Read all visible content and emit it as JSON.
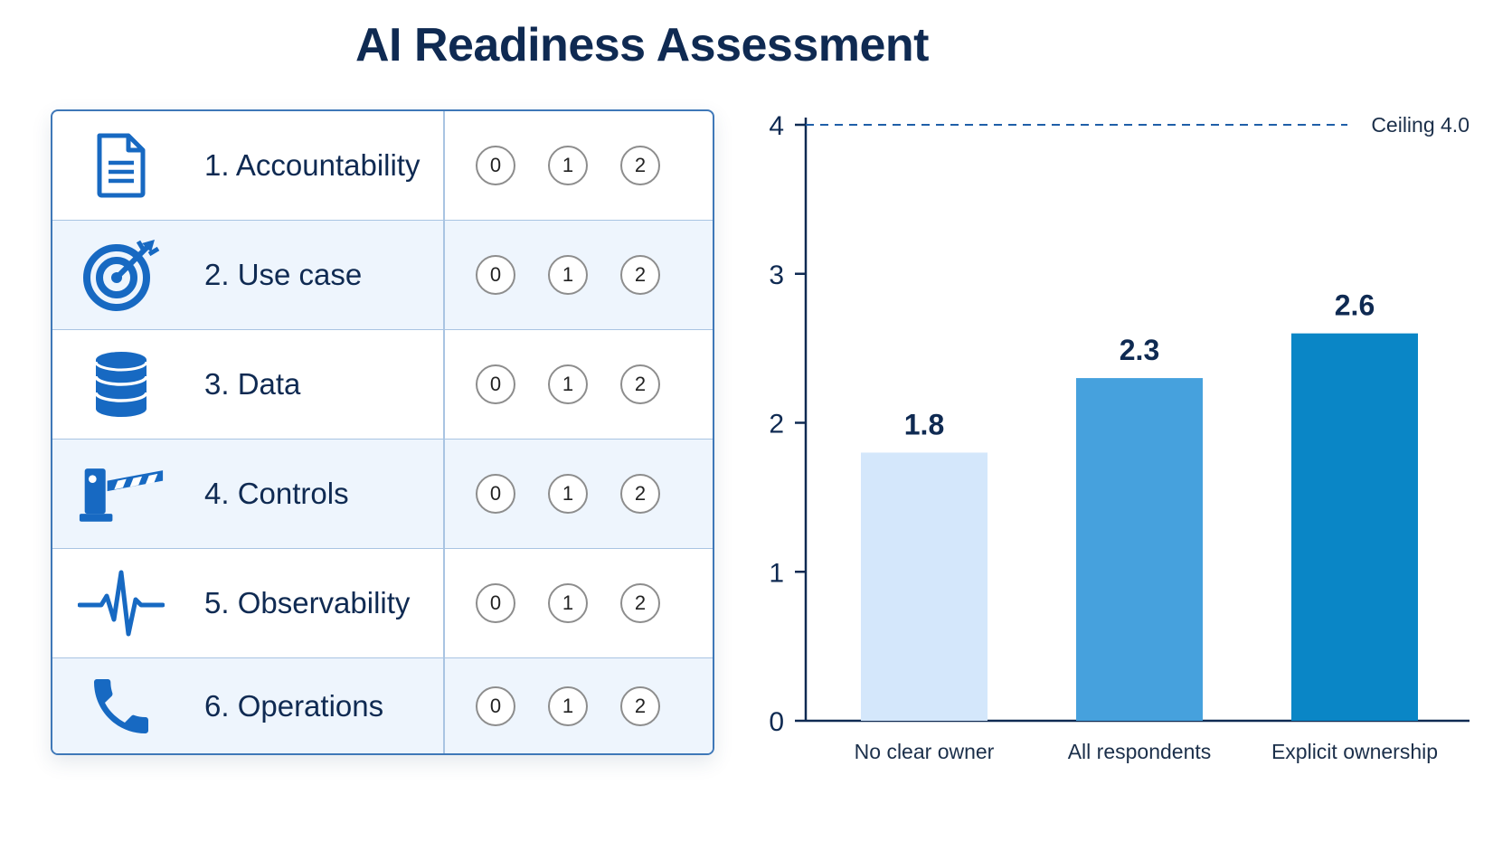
{
  "title": "AI Readiness Assessment",
  "rubric": {
    "items": [
      {
        "label": "1. Accountability",
        "icon": "document-icon"
      },
      {
        "label": "2. Use case",
        "icon": "target-icon"
      },
      {
        "label": "3. Data",
        "icon": "database-icon"
      },
      {
        "label": "4. Controls",
        "icon": "barrier-gate-icon"
      },
      {
        "label": "5. Observability",
        "icon": "pulse-icon"
      },
      {
        "label": "6. Operations",
        "icon": "phone-icon"
      }
    ],
    "scale": [
      "0",
      "1",
      "2"
    ]
  },
  "colors": {
    "accent": "#1769c2",
    "text": "#0f2a52",
    "bar_1": "#d4e7fb",
    "bar_2": "#46a1dd",
    "bar_3": "#0a86c6"
  },
  "chart_data": {
    "type": "bar",
    "categories": [
      "No clear owner",
      "All respondents",
      "Explicit ownership"
    ],
    "values": [
      1.8,
      2.3,
      2.6
    ],
    "value_labels": [
      "1.8",
      "2.3",
      "2.6"
    ],
    "ylim": [
      0,
      4
    ],
    "yticks": [
      "0",
      "1",
      "2",
      "3",
      "4"
    ],
    "reference_line": {
      "value": 4.0,
      "label": "Ceiling 4.0"
    },
    "grid": false
  }
}
